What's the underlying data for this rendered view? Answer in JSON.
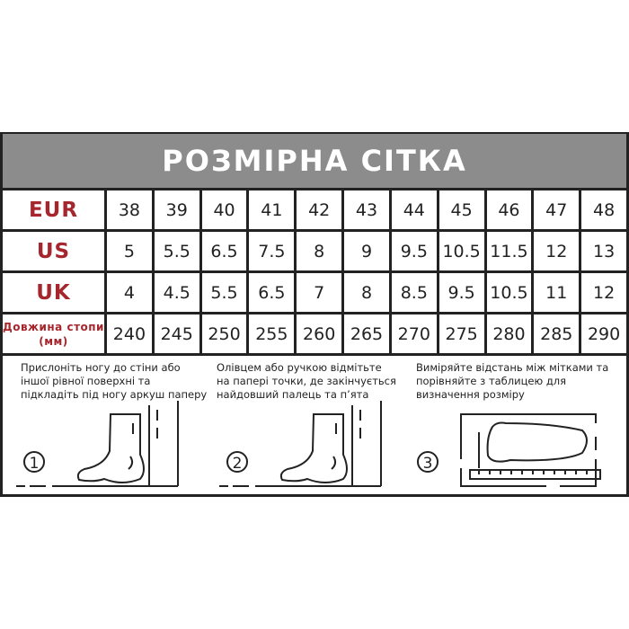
{
  "title": "РОЗМІРНА СІТКА",
  "rows": [
    {
      "label": "EUR",
      "values": [
        "38",
        "39",
        "40",
        "41",
        "42",
        "43",
        "44",
        "45",
        "46",
        "47",
        "48"
      ]
    },
    {
      "label": "US",
      "values": [
        "5",
        "5.5",
        "6.5",
        "7.5",
        "8",
        "9",
        "9.5",
        "10.5",
        "11.5",
        "12",
        "13"
      ]
    },
    {
      "label": "UK",
      "values": [
        "4",
        "4.5",
        "5.5",
        "6.5",
        "7",
        "8",
        "8.5",
        "9.5",
        "10.5",
        "11",
        "12"
      ]
    },
    {
      "label": "Довжина стопи (мм)",
      "values": [
        "240",
        "245",
        "250",
        "255",
        "260",
        "265",
        "270",
        "275",
        "280",
        "285",
        "290"
      ]
    }
  ],
  "steps": [
    {
      "number": "1",
      "text": "Прислоніть ногу до стіни або іншої рівної поверхні та підкладіть під ногу аркуш паперу"
    },
    {
      "number": "2",
      "text": "Олівцем або ручкою відмітьте на папері точки, де закінчується найдовший палець та п’ята"
    },
    {
      "number": "3",
      "text": "Виміряйте відстань між мітками та порівняйте з таблицею для визначення розміру"
    }
  ],
  "colors": {
    "label": "#a5262c",
    "header": "#8c8c8c",
    "border": "#222222"
  }
}
